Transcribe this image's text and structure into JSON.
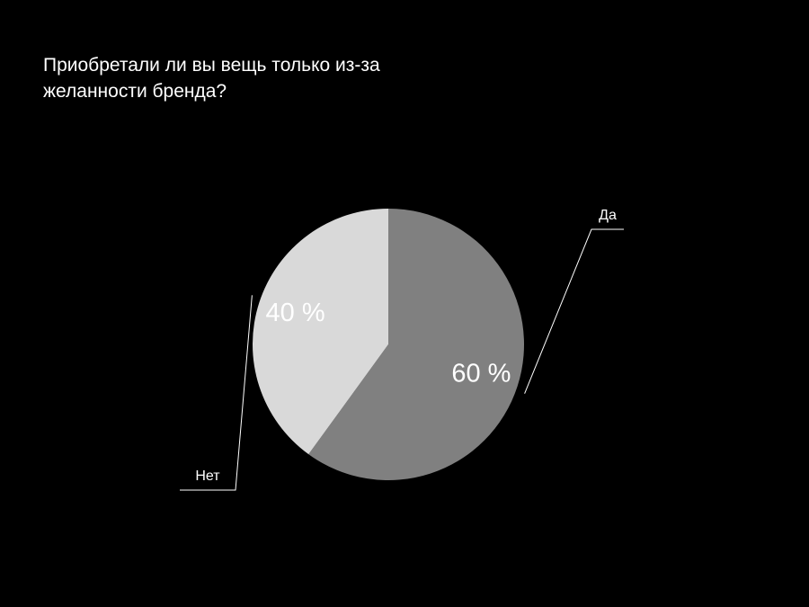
{
  "chart_data": {
    "type": "pie",
    "title": "Приобретали ли вы вещь только из-за желанности бренда?",
    "categories": [
      "Да",
      "Нет"
    ],
    "values": [
      60,
      40
    ],
    "value_labels": [
      "60 %",
      "40 %"
    ],
    "colors": [
      "#808080",
      "#d9d9d9"
    ]
  }
}
